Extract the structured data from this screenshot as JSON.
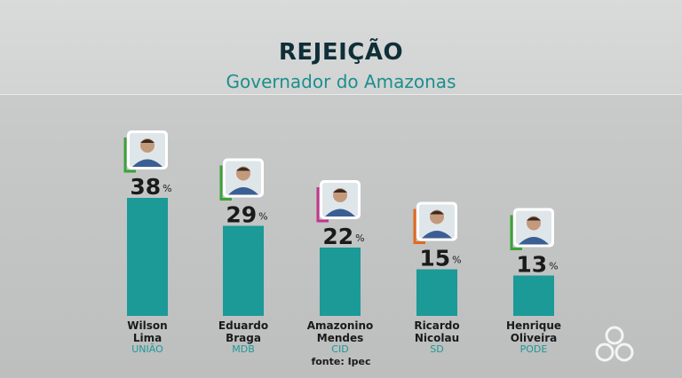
{
  "header": {
    "title": "REJEIÇÃO",
    "subtitle": "Governador do Amazonas"
  },
  "source": "fonte: Ipec",
  "colors": {
    "bar": "#1b9a97",
    "value": "#1a1a1a",
    "name": "#1a1a1a",
    "party": "#1b9a97"
  },
  "chart_data": {
    "type": "bar",
    "title": "REJEIÇÃO",
    "subtitle": "Governador do Amazonas",
    "categories": [
      "Wilson Lima",
      "Eduardo Braga",
      "Amazonino Mendes",
      "Ricardo Nicolau",
      "Henrique Oliveira"
    ],
    "series": [
      {
        "values": [
          38,
          29,
          22,
          15,
          13
        ]
      }
    ],
    "name_lines": [
      [
        "Wilson",
        "Lima"
      ],
      [
        "Eduardo",
        "Braga"
      ],
      [
        "Amazonino",
        "Mendes"
      ],
      [
        "Ricardo",
        "Nicolau"
      ],
      [
        "Henrique",
        "Oliveira"
      ]
    ],
    "parties": [
      "UNIÃO",
      "MDB",
      "CID",
      "SD",
      "PODE"
    ],
    "party_colors": [
      "#3aa336",
      "#3aa336",
      "#c2368c",
      "#e06a1c",
      "#3aa336"
    ],
    "value_suffix": "%",
    "ylim": [
      0,
      38
    ]
  }
}
